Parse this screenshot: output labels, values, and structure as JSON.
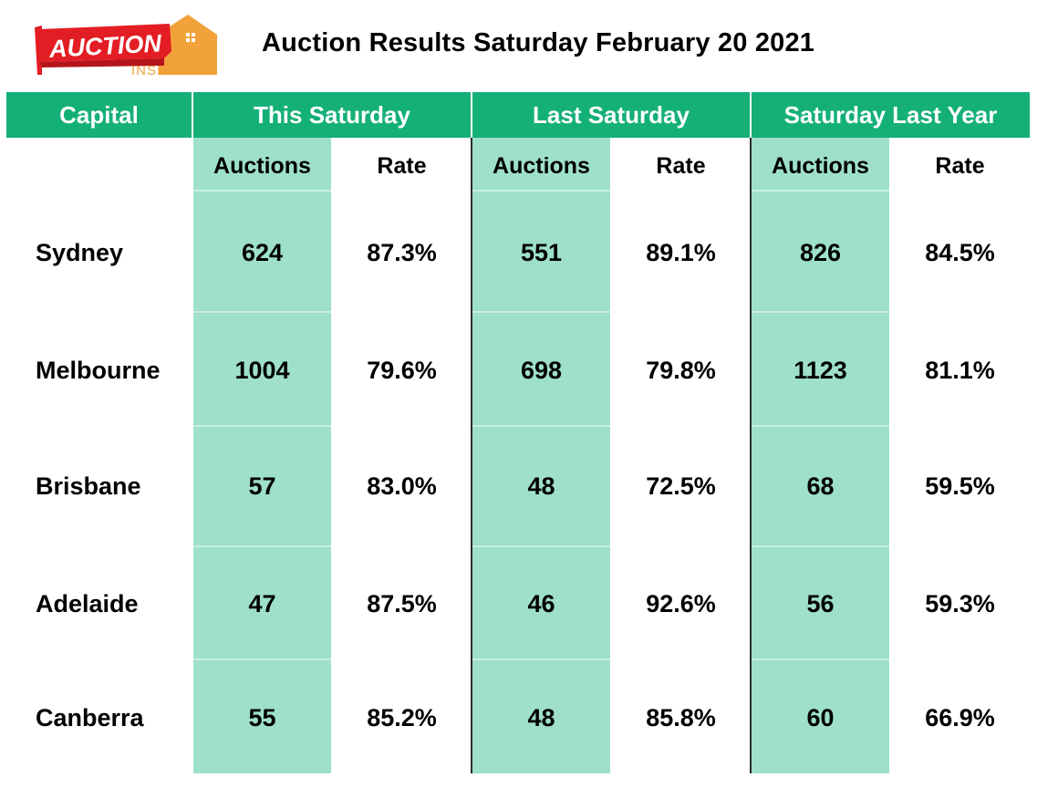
{
  "logo": {
    "word": "AUCTION",
    "sub": "INSIDER"
  },
  "title": "Auction Results Saturday February 20 2021",
  "colors": {
    "header": "#14b077",
    "auction_col": "#9ee0c8"
  },
  "chart_data": {
    "type": "table",
    "header": [
      "Capital",
      "This Saturday",
      "Last Saturday",
      "Saturday Last Year"
    ],
    "subheader": [
      "Auctions",
      "Rate",
      "Auctions",
      "Rate",
      "Auctions",
      "Rate"
    ],
    "rows": [
      {
        "city": "Sydney",
        "values": [
          "624",
          "87.3%",
          "551",
          "89.1%",
          "826",
          "84.5%"
        ]
      },
      {
        "city": "Melbourne",
        "values": [
          "1004",
          "79.6%",
          "698",
          "79.8%",
          "1123",
          "81.1%"
        ]
      },
      {
        "city": "Brisbane",
        "values": [
          "57",
          "83.0%",
          "48",
          "72.5%",
          "68",
          "59.5%"
        ]
      },
      {
        "city": "Adelaide",
        "values": [
          "47",
          "87.5%",
          "46",
          "92.6%",
          "56",
          "59.3%"
        ]
      },
      {
        "city": "Canberra",
        "values": [
          "55",
          "85.2%",
          "48",
          "85.8%",
          "60",
          "66.9%"
        ]
      }
    ]
  }
}
